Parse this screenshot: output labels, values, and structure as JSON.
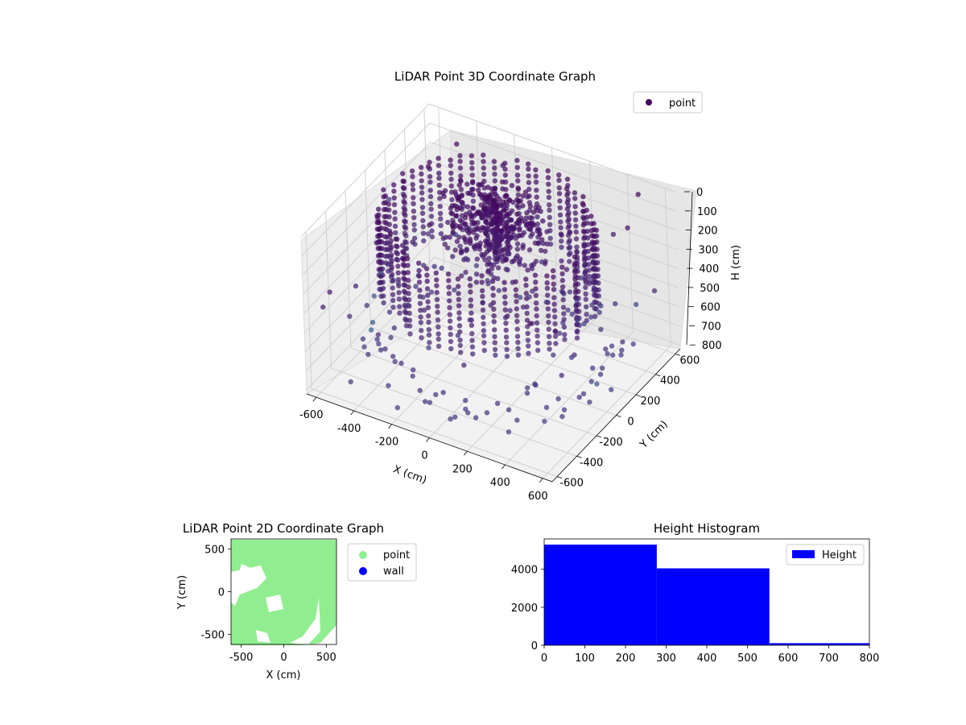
{
  "chart_data": [
    {
      "type": "scatter",
      "title": "LiDAR Point 3D Coordinate Graph",
      "xlabel": "X (cm)",
      "ylabel": "Y (cm)",
      "zlabel": "H (cm)",
      "xticks": [
        "-600",
        "-400",
        "-200",
        "0",
        "200",
        "400",
        "600"
      ],
      "yticks": [
        "-600",
        "-400",
        "-200",
        "0",
        "200",
        "400",
        "600"
      ],
      "zticks": [
        "0",
        "100",
        "200",
        "300",
        "400",
        "500",
        "600",
        "700",
        "800"
      ],
      "xlim": [
        -650,
        650
      ],
      "ylim": [
        -650,
        650
      ],
      "zlim": [
        0,
        820
      ],
      "z_inverted": true,
      "legend": {
        "placement": "top-right",
        "entries": [
          "point"
        ]
      },
      "colormap": "viridis",
      "point_color": "#44085f",
      "grid": true
    },
    {
      "type": "scatter",
      "title": "LiDAR Point 2D Coordinate Graph",
      "xlabel": "X (cm)",
      "ylabel": "Y (cm)",
      "xticks": [
        "-500",
        "0",
        "500"
      ],
      "yticks": [
        "500",
        "0",
        "-500"
      ],
      "xlim": [
        -620,
        620
      ],
      "ylim": [
        -620,
        620
      ],
      "legend": {
        "placement": "outside-right",
        "entries": [
          {
            "label": "point",
            "color": "#90ee90"
          },
          {
            "label": "wall",
            "color": "#0000ff"
          }
        ]
      }
    },
    {
      "type": "bar",
      "title": "Height Histogram",
      "bins": [
        {
          "from": 0,
          "to": 277,
          "count": 5300
        },
        {
          "from": 277,
          "to": 554,
          "count": 4050
        },
        {
          "from": 554,
          "to": 830,
          "count": 110
        }
      ],
      "xticks": [
        "0",
        "100",
        "200",
        "300",
        "400",
        "500",
        "600",
        "700",
        "800"
      ],
      "yticks": [
        "0",
        "2000",
        "4000"
      ],
      "xlim": [
        0,
        800
      ],
      "ylim": [
        0,
        5600
      ],
      "bar_color": "#0000ff",
      "legend": {
        "placement": "top-right",
        "entries": [
          "Height"
        ]
      },
      "grid": false
    }
  ]
}
